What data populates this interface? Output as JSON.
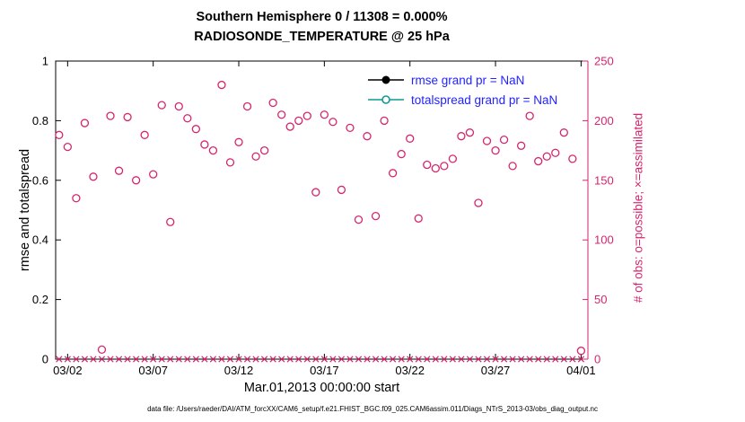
{
  "title": {
    "line1": "Southern Hemisphere 0 / 11308 = 0.000%",
    "line2": "RADIOSONDE_TEMPERATURE @ 25 hPa"
  },
  "axes": {
    "left_label": "rmse and totalspread",
    "right_label": "# of obs: o=possible; ×=assimilated",
    "x_label": "Mar.01,2013 00:00:00 start",
    "left_ticks": [
      0,
      0.2,
      0.4,
      0.6,
      0.8,
      1
    ],
    "right_ticks": [
      0,
      50,
      100,
      150,
      200,
      250
    ],
    "x_tick_values": [
      2,
      7,
      12,
      17,
      22,
      27,
      32
    ],
    "x_tick_labels": [
      "03/02",
      "03/07",
      "03/12",
      "03/17",
      "03/22",
      "03/27",
      "04/01"
    ],
    "x_range": [
      1.3,
      32.4
    ],
    "left_range": [
      0,
      1
    ],
    "right_range": [
      0,
      250
    ]
  },
  "legend": [
    {
      "label": "rmse grand pr = NaN",
      "color": "#000000",
      "marker": "filled-circle"
    },
    {
      "label": "totalspread grand pr = NaN",
      "color": "#0f9b8e",
      "marker": "open-circle"
    }
  ],
  "colors": {
    "obs": "#d6256d",
    "axis": "#000000",
    "legend_text": "#2222ff",
    "teal": "#0f9b8e"
  },
  "caption": "data file: /Users/raeder/DAI/ATM_forcXX/CAM6_setup/f.e21.FHIST_BGC.f09_025.CAM6assim.011/Diags_NTrS_2013-03/obs_diag_output.nc",
  "chart_data": {
    "type": "scatter",
    "title": "Southern Hemisphere 0 / 11308 = 0.000% | RADIOSONDE_TEMPERATURE @ 25 hPa",
    "xlabel": "Mar.01,2013 00:00:00 start",
    "ylabel_left": "rmse and totalspread",
    "ylabel_right": "# of obs: o=possible; ×=assimilated",
    "x_unit": "day of March 2013, obs every 12 h",
    "x_range": [
      1.3,
      32.4
    ],
    "ylim_left": [
      0,
      1
    ],
    "ylim_right": [
      0,
      250
    ],
    "grid": false,
    "x": [
      1.5,
      2,
      2.5,
      3,
      3.5,
      4,
      4.5,
      5,
      5.5,
      6,
      6.5,
      7,
      7.5,
      8,
      8.5,
      9,
      9.5,
      10,
      10.5,
      11,
      11.5,
      12,
      12.5,
      13,
      13.5,
      14,
      14.5,
      15,
      15.5,
      16,
      16.5,
      17,
      17.5,
      18,
      18.5,
      19,
      19.5,
      20,
      20.5,
      21,
      21.5,
      22,
      22.5,
      23,
      23.5,
      24,
      24.5,
      25,
      25.5,
      26,
      26.5,
      27,
      27.5,
      28,
      28.5,
      29,
      29.5,
      30,
      30.5,
      31,
      31.5,
      32
    ],
    "series": [
      {
        "name": "# of obs possible",
        "axis": "right",
        "marker": "o",
        "y": [
          188,
          178,
          135,
          198,
          153,
          8,
          204,
          158,
          203,
          150,
          188,
          155,
          213,
          115,
          212,
          202,
          193,
          180,
          175,
          230,
          165,
          182,
          212,
          170,
          175,
          215,
          205,
          195,
          200,
          204,
          140,
          205,
          199,
          142,
          194,
          117,
          187,
          120,
          200,
          156,
          172,
          185,
          118,
          163,
          160,
          162,
          168,
          187,
          190,
          131,
          183,
          175,
          184,
          162,
          179,
          204,
          166,
          170,
          173,
          190,
          168,
          7
        ]
      },
      {
        "name": "# of obs assimilated",
        "axis": "right",
        "marker": "x",
        "y": [
          0,
          0,
          0,
          0,
          0,
          0,
          0,
          0,
          0,
          0,
          0,
          0,
          0,
          0,
          0,
          0,
          0,
          0,
          0,
          0,
          0,
          0,
          0,
          0,
          0,
          0,
          0,
          0,
          0,
          0,
          0,
          0,
          0,
          0,
          0,
          0,
          0,
          0,
          0,
          0,
          0,
          0,
          0,
          0,
          0,
          0,
          0,
          0,
          0,
          0,
          0,
          0,
          0,
          0,
          0,
          0,
          0,
          0,
          0,
          0,
          0,
          0
        ]
      },
      {
        "name": "rmse grand pr",
        "axis": "left",
        "marker": "filled-circle",
        "y": "NaN (not plotted)"
      },
      {
        "name": "totalspread grand pr",
        "axis": "left",
        "marker": "open-circle",
        "y": "NaN (not plotted)"
      }
    ]
  }
}
